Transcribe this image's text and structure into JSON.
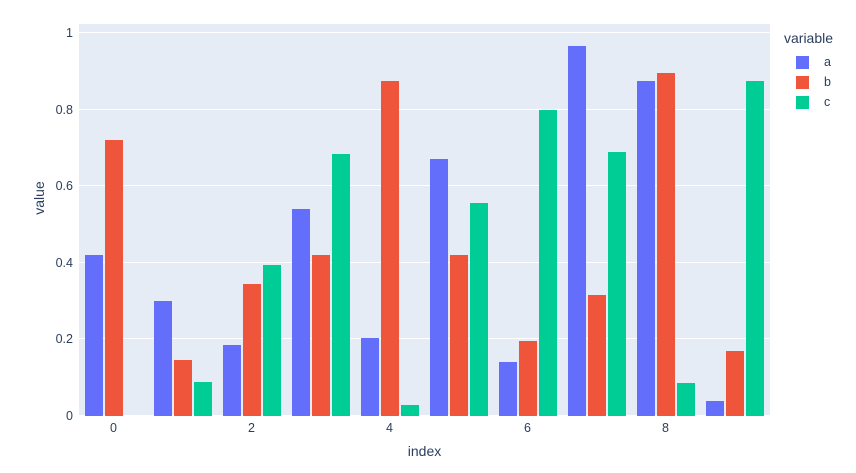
{
  "chart_data": {
    "type": "bar",
    "mode": "grouped",
    "title": "",
    "xlabel": "index",
    "ylabel": "value",
    "legend_title": "variable",
    "legend_position": "right-top",
    "grid": true,
    "x": [
      0,
      1,
      2,
      3,
      4,
      5,
      6,
      7,
      8,
      9
    ],
    "series": [
      {
        "name": "a",
        "color": "#636EFA",
        "values": [
          0.42,
          0.3,
          0.185,
          0.54,
          0.205,
          0.67,
          0.14,
          0.965,
          0.875,
          0.04
        ]
      },
      {
        "name": "b",
        "color": "#EF553B",
        "values": [
          0.72,
          0.145,
          0.345,
          0.42,
          0.875,
          0.42,
          0.195,
          0.315,
          0.895,
          0.17
        ]
      },
      {
        "name": "c",
        "color": "#00CC96",
        "values": [
          0.0,
          0.09,
          0.395,
          0.685,
          0.03,
          0.555,
          0.8,
          0.69,
          0.085,
          0.875
        ]
      }
    ],
    "x_ticks": [
      {
        "label": "0",
        "value": 0
      },
      {
        "label": "2",
        "value": 2
      },
      {
        "label": "4",
        "value": 4
      },
      {
        "label": "6",
        "value": 6
      },
      {
        "label": "8",
        "value": 8
      }
    ],
    "y_ticks": [
      {
        "label": "0",
        "value": 0
      },
      {
        "label": "0.2",
        "value": 0.2
      },
      {
        "label": "0.4",
        "value": 0.4
      },
      {
        "label": "0.6",
        "value": 0.6
      },
      {
        "label": "0.8",
        "value": 0.8
      },
      {
        "label": "1",
        "value": 1
      }
    ],
    "ylim": [
      0,
      1.025
    ],
    "colors": {
      "plot_background": "#E5ECF6",
      "paper_background": "#FFFFFF",
      "gridline": "#FFFFFF",
      "text": "#2A3F5F"
    }
  }
}
